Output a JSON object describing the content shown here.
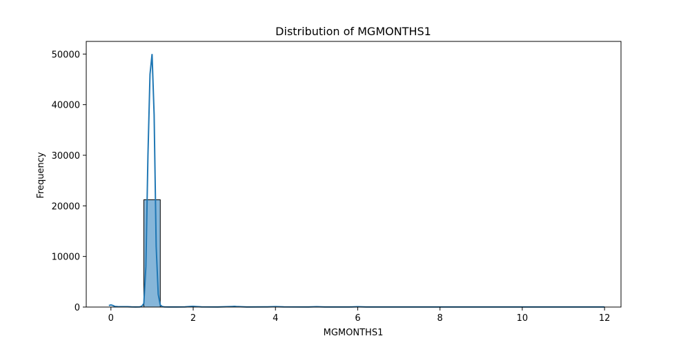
{
  "chart_data": {
    "type": "bar",
    "title": "Distribution of MGMONTHS1",
    "xlabel": "MGMONTHS1",
    "ylabel": "Frequency",
    "xlim": [
      -0.6,
      12.4
    ],
    "ylim": [
      0,
      52500
    ],
    "x_ticks": [
      0,
      2,
      4,
      6,
      8,
      10,
      12
    ],
    "y_ticks": [
      0,
      10000,
      20000,
      30000,
      40000,
      50000
    ],
    "bin_width": 0.4,
    "bins": [
      {
        "x0": 0.8,
        "x1": 1.2,
        "count": 21200
      }
    ],
    "kde": {
      "x": [
        -0.05,
        0.0,
        0.05,
        0.1,
        0.2,
        0.3,
        0.4,
        0.5,
        0.6,
        0.7,
        0.75,
        0.8,
        0.85,
        0.9,
        0.95,
        1.0,
        1.05,
        1.1,
        1.15,
        1.2,
        1.25,
        1.3,
        1.4,
        1.6,
        1.8,
        1.95,
        2.0,
        2.05,
        2.2,
        2.6,
        2.95,
        3.0,
        3.05,
        3.3,
        3.8,
        4.0,
        4.2,
        4.8,
        5.0,
        5.2,
        5.8,
        6.0,
        6.2,
        7.0,
        8.0,
        9.0,
        10.0,
        11.0,
        12.0
      ],
      "y": [
        300,
        420,
        300,
        120,
        60,
        60,
        60,
        30,
        20,
        40,
        150,
        700,
        8000,
        30000,
        46000,
        50000,
        38000,
        12000,
        2500,
        400,
        80,
        30,
        20,
        20,
        40,
        120,
        140,
        110,
        40,
        20,
        110,
        130,
        100,
        20,
        30,
        90,
        30,
        20,
        70,
        20,
        20,
        60,
        20,
        20,
        20,
        20,
        20,
        20,
        20
      ]
    },
    "colors": {
      "bar_fill": "#86b6d9",
      "bar_edge": "#000000",
      "line": "#1f77b4"
    },
    "grid": false,
    "legend": "none"
  }
}
